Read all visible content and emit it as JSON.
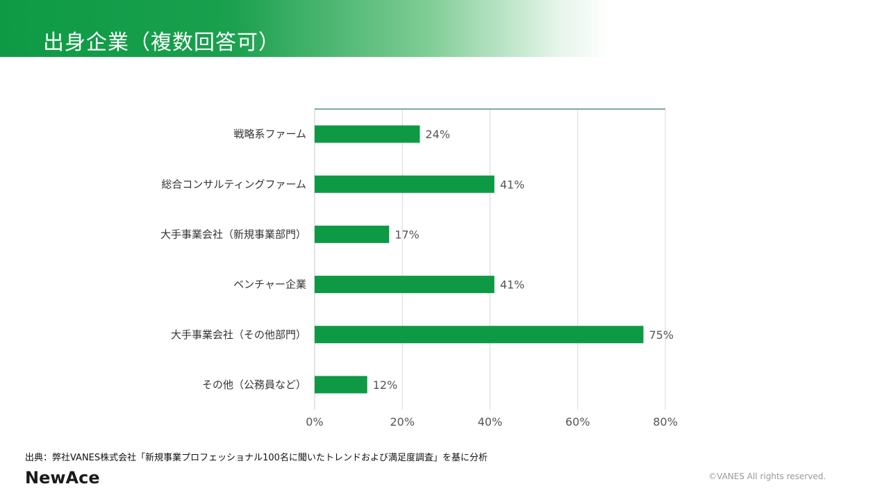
{
  "header": {
    "title": "出身企業（複数回答可）"
  },
  "colors": {
    "bar": "#0e9a45",
    "accent": "#0e9a45",
    "grid": "#d9d9d9"
  },
  "chart_data": {
    "type": "bar",
    "orientation": "horizontal",
    "categories": [
      "戦略系ファーム",
      "総合コンサルティングファーム",
      "大手事業会社（新規事業部門）",
      "ベンチャー企業",
      "大手事業会社（その他部門）",
      "その他（公務員など）"
    ],
    "values": [
      24,
      41,
      17,
      41,
      75,
      12
    ],
    "value_labels": [
      "24%",
      "41%",
      "17%",
      "41%",
      "75%",
      "12%"
    ],
    "xlim": [
      0,
      80
    ],
    "xticks": [
      0,
      20,
      40,
      60,
      80
    ],
    "xtick_labels": [
      "0%",
      "20%",
      "40%",
      "60%",
      "80%"
    ],
    "grid": true,
    "legend": "none"
  },
  "footer": {
    "source": "出典：弊社VANES株式会社「新規事業プロフェッショナル100名に聞いたトレンドおよび満足度調査」を基に分析",
    "logo_text": "NewAce",
    "copyright": "©VANES All rights reserved."
  }
}
